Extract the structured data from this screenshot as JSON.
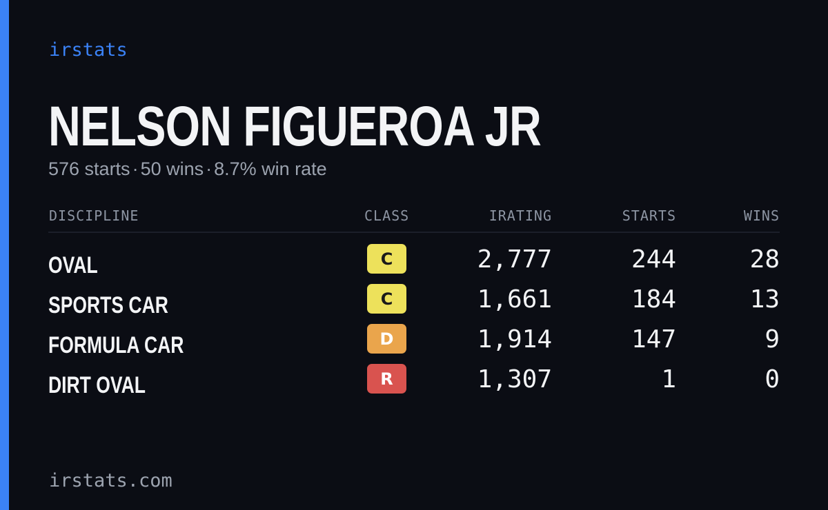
{
  "brand": "irstats",
  "driver": {
    "name": "NELSON FIGUEROA JR",
    "starts_text": "576 starts",
    "wins_text": "50 wins",
    "win_rate_text": "8.7% win rate",
    "separator": "·"
  },
  "table": {
    "headers": {
      "discipline": "DISCIPLINE",
      "class": "CLASS",
      "irating": "IRATING",
      "starts": "STARTS",
      "wins": "WINS"
    },
    "rows": [
      {
        "discipline": "OVAL",
        "class": "C",
        "class_color": "#ede15b",
        "irating": "2,777",
        "starts": "244",
        "wins": "28"
      },
      {
        "discipline": "SPORTS CAR",
        "class": "C",
        "class_color": "#ede15b",
        "irating": "1,661",
        "starts": "184",
        "wins": "13"
      },
      {
        "discipline": "FORMULA CAR",
        "class": "D",
        "class_color": "#eaa54c",
        "irating": "1,914",
        "starts": "147",
        "wins": "9"
      },
      {
        "discipline": "DIRT OVAL",
        "class": "R",
        "class_color": "#d9534f",
        "irating": "1,307",
        "starts": "1",
        "wins": "0"
      }
    ]
  },
  "footer": {
    "url": "irstats.com"
  },
  "colors": {
    "accent": "#3b82f6",
    "background": "#0b0d14"
  }
}
